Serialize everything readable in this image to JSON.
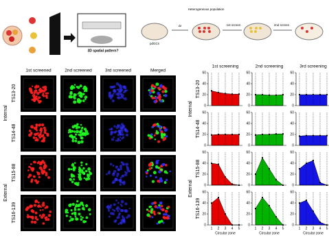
{
  "schematic": {
    "population": "Heterogeneous population",
    "first_screen": "1st screen",
    "second_screen": "2nd screen",
    "pattern_question": "3D spatial pattern?",
    "cells": "pdGCs",
    "delta": "ΔI"
  },
  "microscopy": {
    "columns": [
      "1st screened",
      "2nd screened",
      "3rd screened",
      "Merged"
    ],
    "rows": [
      "TS13-20",
      "TS14-48",
      "TS15-88",
      "TS16-139"
    ],
    "groups": [
      "Internal",
      "External"
    ]
  },
  "plots": {
    "type": "area",
    "columns": [
      "1st screening",
      "2nd screening",
      "3rd screening"
    ],
    "rows": [
      "TS13-20",
      "TS14-48",
      "TS15-88",
      "TS16-139"
    ],
    "groups": [
      "Internal",
      "External"
    ],
    "x_label": "Circular zone",
    "x": [
      1,
      2,
      3,
      4,
      5
    ],
    "xlim": [
      0.5,
      5.5
    ],
    "xticks": [
      1,
      2,
      3,
      4,
      5
    ],
    "ylim": [
      0,
      60
    ],
    "yticks": [
      0,
      20,
      40,
      60
    ],
    "colors": [
      "#e60000",
      "#00b400",
      "#1414e6"
    ],
    "values": [
      [
        [
          27,
          24,
          22,
          21,
          21
        ],
        [
          20,
          20,
          19,
          19,
          20
        ],
        [
          20,
          20,
          20,
          20,
          20
        ]
      ],
      [
        [
          19,
          20,
          20,
          20,
          20
        ],
        [
          19,
          20,
          20,
          21,
          21
        ],
        [
          17,
          18,
          18,
          18,
          18
        ]
      ],
      [
        [
          40,
          38,
          15,
          2,
          0
        ],
        [
          20,
          50,
          30,
          10,
          0
        ],
        [
          30,
          40,
          45,
          5,
          0
        ]
      ],
      [
        [
          40,
          50,
          20,
          0,
          0
        ],
        [
          30,
          50,
          35,
          15,
          0
        ],
        [
          40,
          45,
          25,
          5,
          0
        ]
      ]
    ]
  }
}
